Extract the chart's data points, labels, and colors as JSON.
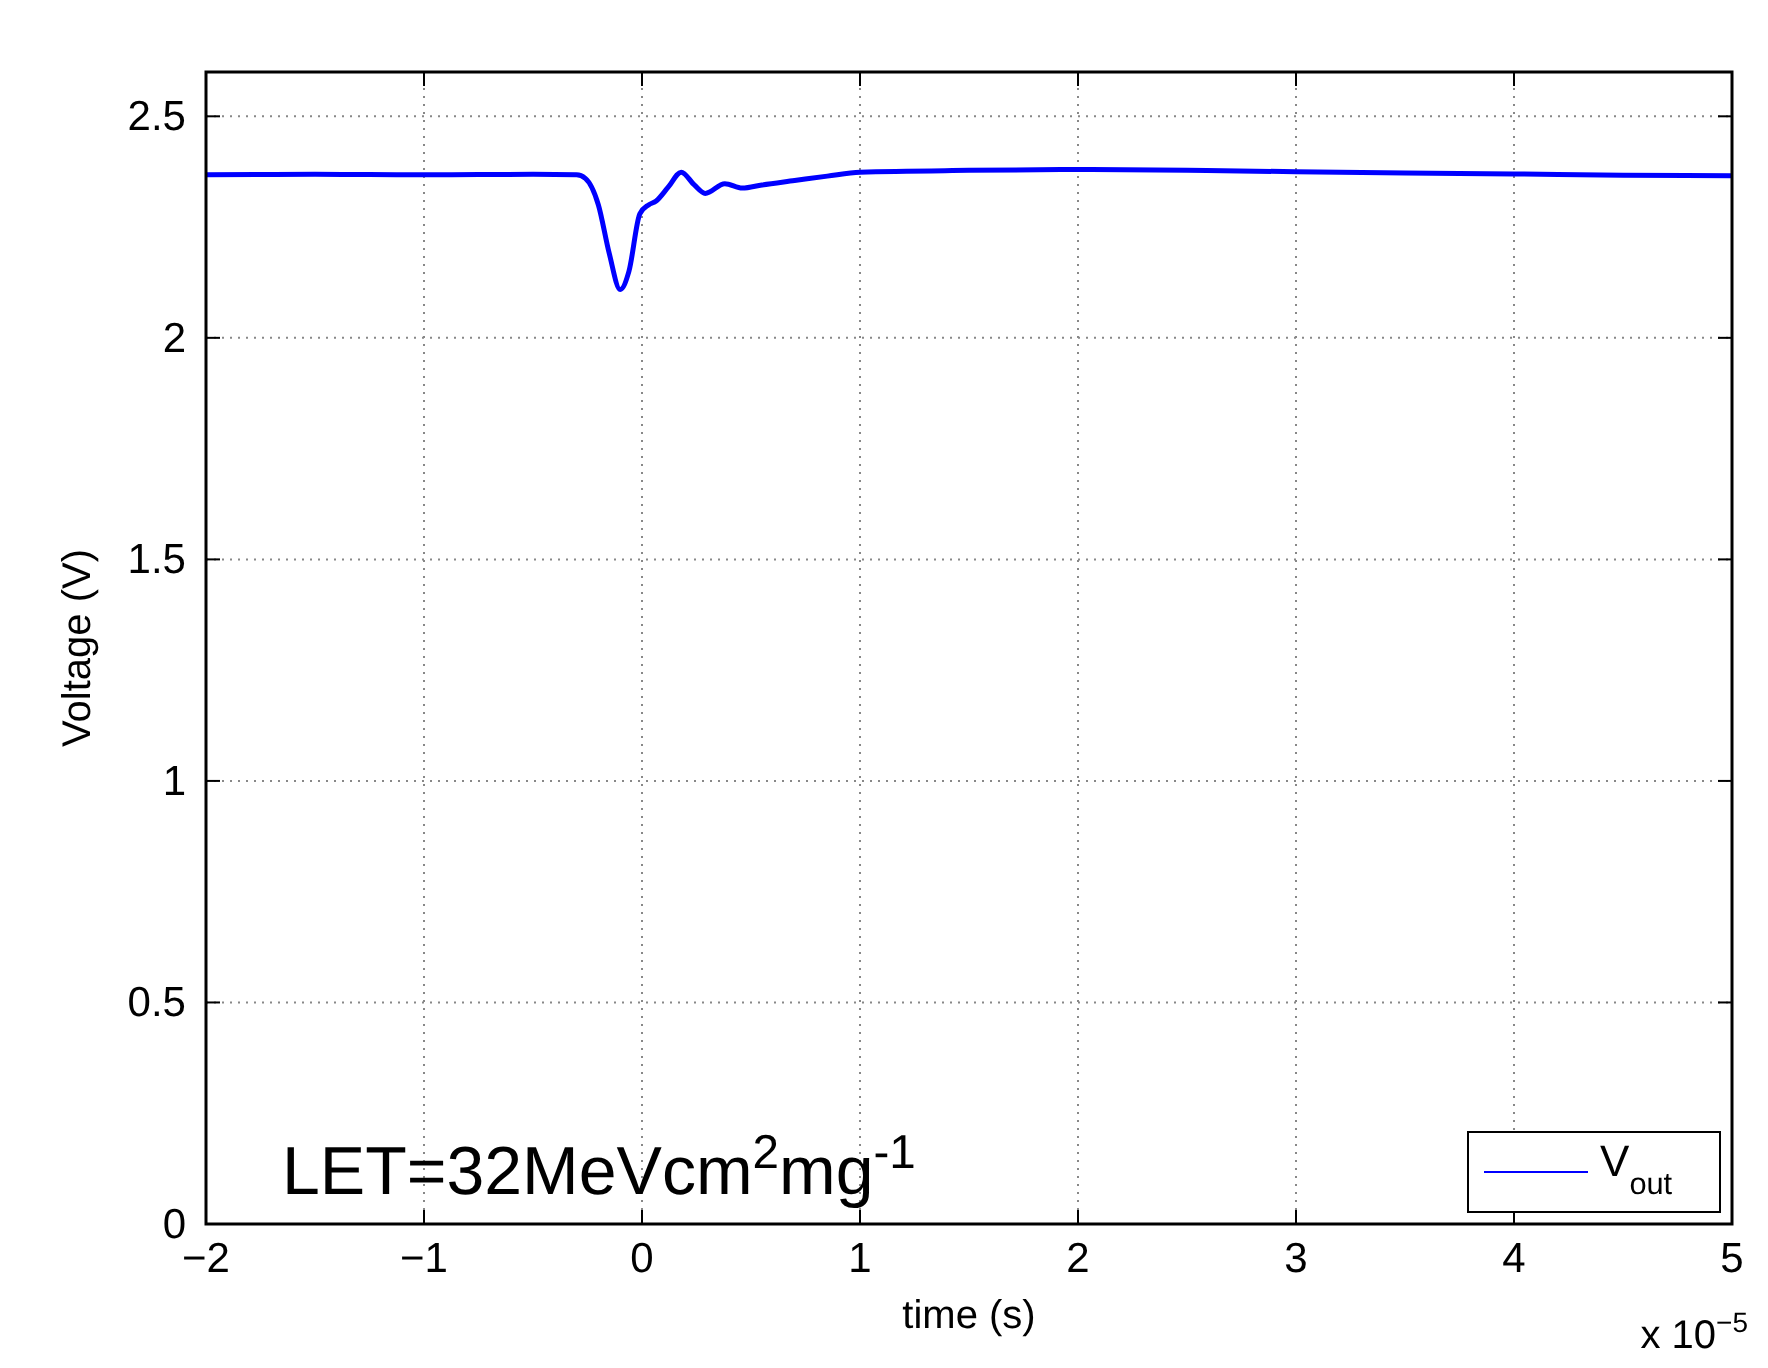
{
  "chart_data": {
    "type": "line",
    "xlabel": "time (s)",
    "ylabel": "Voltage (V)",
    "annotations": [
      "LET=32MeVcm$^{2}$mg$^{-1}$",
      "x 10$^{−5}$"
    ],
    "xlim": [
      -2,
      5
    ],
    "ylim": [
      0,
      2.6
    ],
    "xticks": [
      {
        "value": -2,
        "label": "−2"
      },
      {
        "value": -1,
        "label": "−1"
      },
      0,
      1,
      2,
      3,
      4,
      5
    ],
    "yticks": [
      0,
      0.5,
      1,
      1.5,
      2,
      2.5
    ],
    "grid": true,
    "legend": "bottom right",
    "line_style": "solid",
    "marker": "none",
    "series": [
      {
        "name": "V$_{out}$",
        "color": "#0000ff",
        "x": [
          -2,
          -1.5,
          -1,
          -0.5,
          -0.3,
          -0.26,
          -0.2,
          -0.15,
          -0.1,
          -0.06,
          -0.01,
          0.03,
          0.065,
          0.12,
          0.18,
          0.24,
          0.29,
          0.38,
          0.46,
          0.55,
          0.7,
          0.85,
          1,
          1.5,
          2,
          2.5,
          3,
          3.5,
          4,
          4.5,
          5
        ],
        "values": [
          2.368,
          2.369,
          2.368,
          2.369,
          2.368,
          2.36,
          2.3,
          2.19,
          2.109,
          2.15,
          2.28,
          2.3,
          2.309,
          2.34,
          2.374,
          2.345,
          2.326,
          2.348,
          2.338,
          2.345,
          2.355,
          2.365,
          2.374,
          2.378,
          2.38,
          2.378,
          2.375,
          2.372,
          2.37,
          2.367,
          2.366
        ]
      }
    ]
  }
}
